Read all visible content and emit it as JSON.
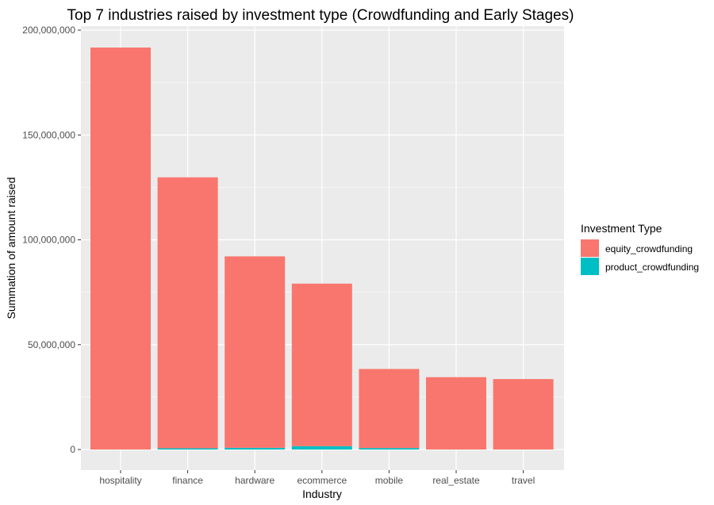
{
  "chart_data": {
    "type": "bar",
    "stacked": true,
    "title": "Top 7 industries raised by investment type (Crowdfunding and Early Stages)",
    "xlabel": "Industry",
    "ylabel": "Summation of amount raised",
    "categories": [
      "hospitality",
      "finance",
      "hardware",
      "ecommerce",
      "mobile",
      "real_estate",
      "travel"
    ],
    "series": [
      {
        "name": "product_crowdfunding",
        "color": "#00BFC4",
        "values": [
          0,
          600000,
          800000,
          1600000,
          700000,
          0,
          0
        ]
      },
      {
        "name": "equity_crowdfunding",
        "color": "#F8766D",
        "values": [
          191700000,
          129200000,
          91300000,
          77500000,
          37700000,
          34500000,
          33600000
        ]
      }
    ],
    "ylim": [
      0,
      200000000
    ],
    "yticks": [
      0,
      50000000,
      100000000,
      150000000,
      200000000
    ],
    "ytick_labels": [
      "0",
      "50,000,000",
      "100,000,000",
      "150,000,000",
      "200,000,000"
    ],
    "legend": {
      "title": "Investment Type",
      "placement": "right",
      "entries": [
        {
          "label": "equity_crowdfunding",
          "color": "#F8766D"
        },
        {
          "label": "product_crowdfunding",
          "color": "#00BFC4"
        }
      ]
    },
    "grid": true,
    "panel_background": "#EBEBEB",
    "grid_color": "#FFFFFF"
  }
}
